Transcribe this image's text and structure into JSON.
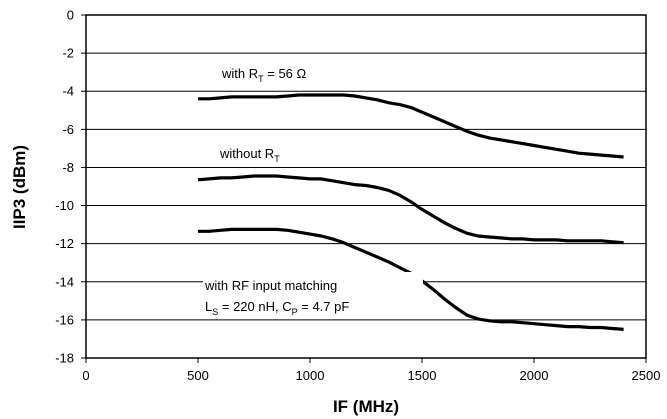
{
  "chart_data": {
    "type": "line",
    "title": "",
    "xlabel": "IF (MHz)",
    "ylabel": "IIP3 (dBm)",
    "xlim": [
      0,
      2500
    ],
    "ylim": [
      -18,
      0
    ],
    "xticks": [
      0,
      500,
      1000,
      1500,
      2000,
      2500
    ],
    "yticks": [
      0,
      -2,
      -4,
      -6,
      -8,
      -10,
      -12,
      -14,
      -16,
      -18
    ],
    "grid": "horizontal",
    "legend": "none",
    "series": [
      {
        "x": [
          500,
          550,
          600,
          650,
          700,
          750,
          800,
          850,
          900,
          950,
          1000,
          1050,
          1100,
          1150,
          1200,
          1250,
          1300,
          1350,
          1400,
          1450,
          1500,
          1550,
          1600,
          1650,
          1700,
          1750,
          1800,
          1850,
          1900,
          1950,
          2000,
          2050,
          2100,
          2150,
          2200,
          2250,
          2300,
          2350,
          2400
        ],
        "y": [
          -4.4,
          -4.4,
          -4.35,
          -4.3,
          -4.3,
          -4.3,
          -4.3,
          -4.3,
          -4.25,
          -4.2,
          -4.2,
          -4.2,
          -4.2,
          -4.2,
          -4.25,
          -4.35,
          -4.45,
          -4.6,
          -4.7,
          -4.85,
          -5.1,
          -5.35,
          -5.6,
          -5.85,
          -6.1,
          -6.3,
          -6.45,
          -6.55,
          -6.65,
          -6.75,
          -6.85,
          -6.95,
          -7.05,
          -7.15,
          -7.25,
          -7.3,
          -7.35,
          -7.4,
          -7.45
        ]
      },
      {
        "x": [
          500,
          550,
          600,
          650,
          700,
          750,
          800,
          850,
          900,
          950,
          1000,
          1050,
          1100,
          1150,
          1200,
          1250,
          1300,
          1350,
          1400,
          1450,
          1500,
          1550,
          1600,
          1650,
          1700,
          1750,
          1800,
          1850,
          1900,
          1950,
          2000,
          2050,
          2100,
          2150,
          2200,
          2250,
          2300,
          2350,
          2400
        ],
        "y": [
          -8.65,
          -8.6,
          -8.55,
          -8.55,
          -8.5,
          -8.45,
          -8.45,
          -8.45,
          -8.5,
          -8.55,
          -8.6,
          -8.6,
          -8.7,
          -8.8,
          -8.9,
          -8.95,
          -9.05,
          -9.2,
          -9.45,
          -9.8,
          -10.2,
          -10.55,
          -10.9,
          -11.2,
          -11.45,
          -11.6,
          -11.65,
          -11.7,
          -11.75,
          -11.75,
          -11.8,
          -11.8,
          -11.8,
          -11.85,
          -11.85,
          -11.85,
          -11.85,
          -11.9,
          -11.95
        ]
      },
      {
        "x": [
          500,
          550,
          600,
          650,
          700,
          750,
          800,
          850,
          900,
          950,
          1000,
          1050,
          1100,
          1150,
          1200,
          1250,
          1300,
          1350,
          1400,
          1450,
          1500,
          1550,
          1600,
          1650,
          1700,
          1750,
          1800,
          1850,
          1900,
          1950,
          2000,
          2050,
          2100,
          2150,
          2200,
          2250,
          2300,
          2350,
          2400
        ],
        "y": [
          -11.35,
          -11.35,
          -11.3,
          -11.25,
          -11.25,
          -11.25,
          -11.25,
          -11.25,
          -11.3,
          -11.4,
          -11.5,
          -11.6,
          -11.75,
          -11.95,
          -12.2,
          -12.45,
          -12.7,
          -12.95,
          -13.25,
          -13.55,
          -13.95,
          -14.4,
          -14.9,
          -15.35,
          -15.75,
          -15.95,
          -16.05,
          -16.1,
          -16.1,
          -16.15,
          -16.2,
          -16.25,
          -16.3,
          -16.35,
          -16.35,
          -16.4,
          -16.4,
          -16.45,
          -16.5
        ]
      }
    ],
    "annotations": [
      {
        "text": "with R",
        "sub": "T",
        "tail": " = 56 Ω"
      },
      {
        "text": "without R",
        "sub": "T",
        "tail": ""
      },
      {
        "text": "with RF input matching",
        "sub": "",
        "tail": ""
      },
      {
        "text": "L",
        "sub": "S",
        "tail": " = 220 nH, C",
        "sub2": "P",
        "tail2": " = 4.7 pF"
      }
    ]
  }
}
